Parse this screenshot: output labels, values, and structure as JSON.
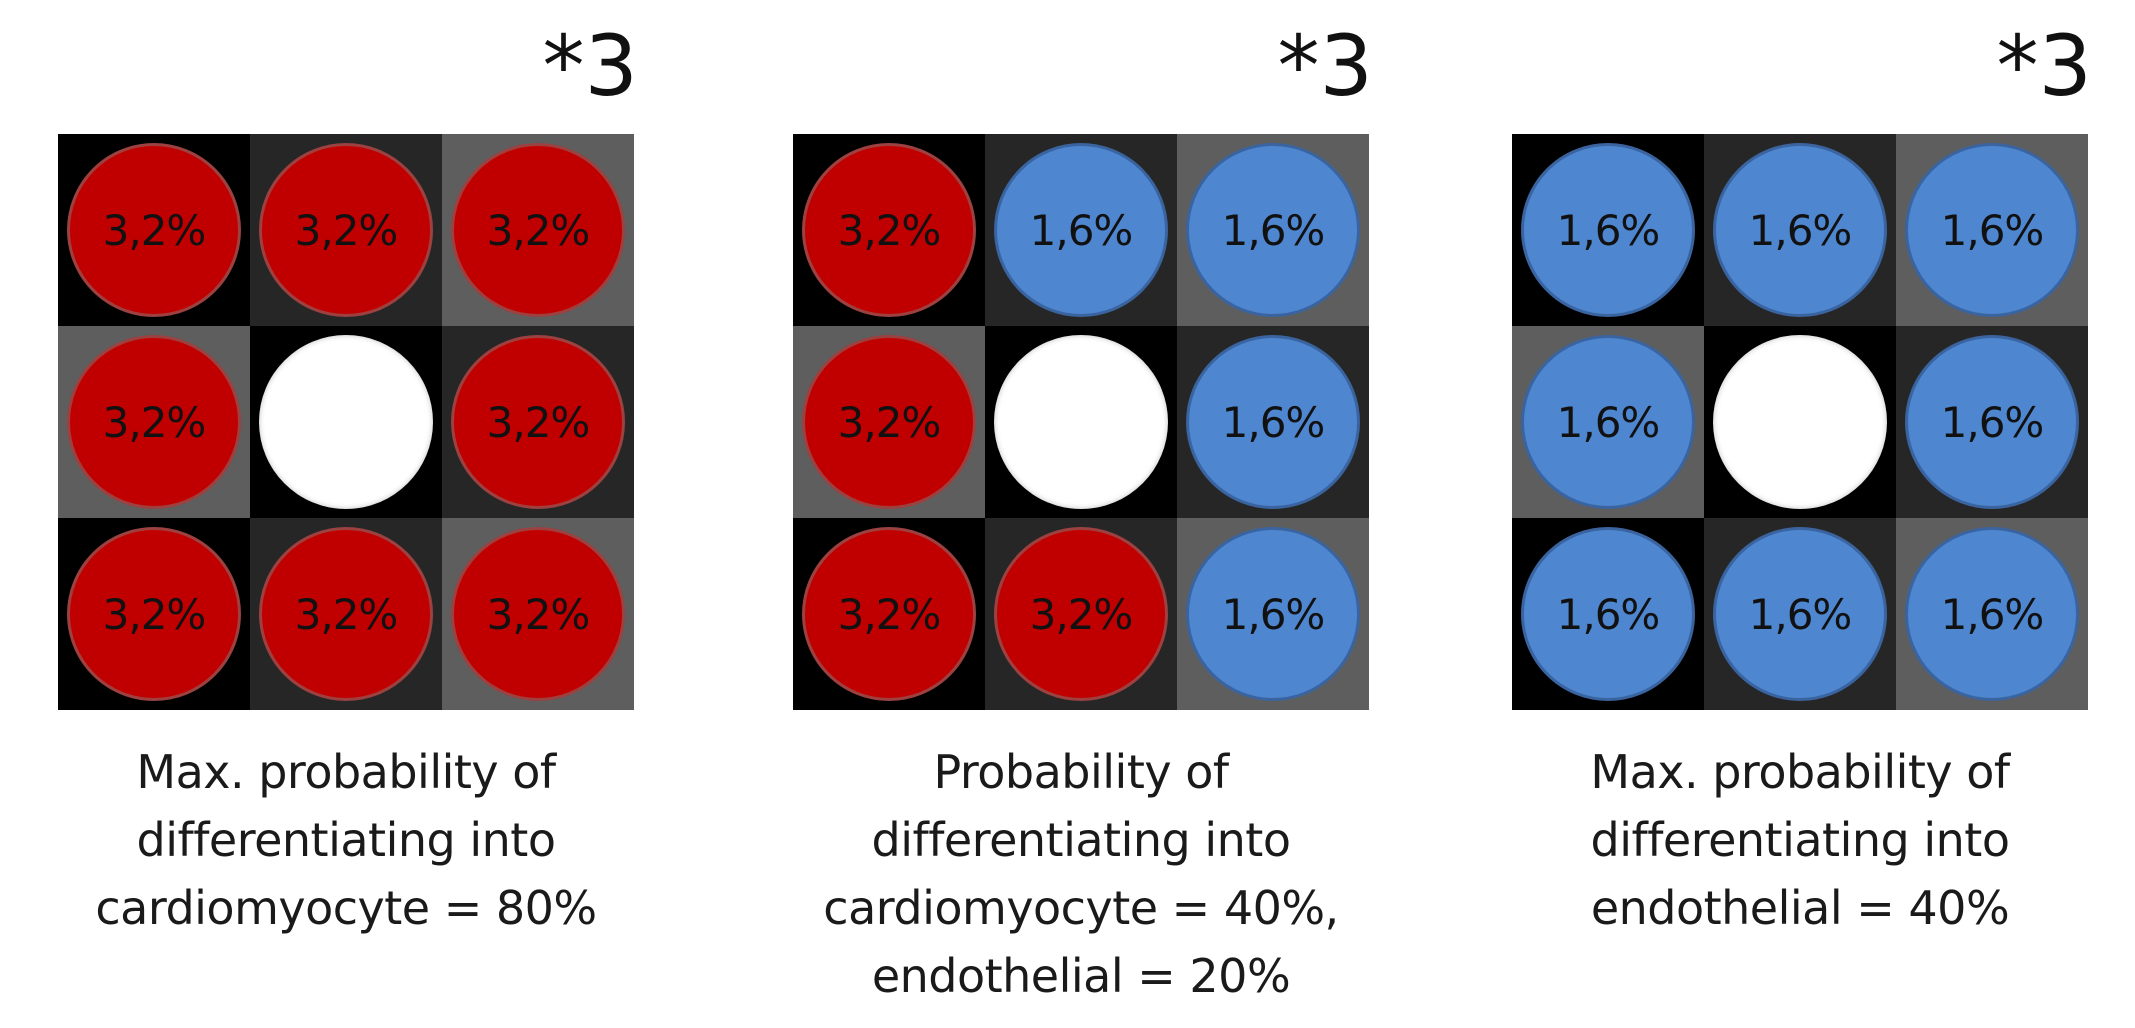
{
  "colors": {
    "cardiomyocyte": "#c00000",
    "endothelial": "#4f86d0",
    "empty": "#ffffff"
  },
  "panels": [
    {
      "multiplier": "*3",
      "cells": [
        {
          "type": "red",
          "label": "3,2%"
        },
        {
          "type": "red",
          "label": "3,2%"
        },
        {
          "type": "red",
          "label": "3,2%"
        },
        {
          "type": "red",
          "label": "3,2%"
        },
        {
          "type": "white",
          "label": ""
        },
        {
          "type": "red",
          "label": "3,2%"
        },
        {
          "type": "red",
          "label": "3,2%"
        },
        {
          "type": "red",
          "label": "3,2%"
        },
        {
          "type": "red",
          "label": "3,2%"
        }
      ],
      "caption": [
        "Max. probability of",
        "differentiating into",
        "cardiomyocyte = 80%"
      ]
    },
    {
      "multiplier": "*3",
      "cells": [
        {
          "type": "red",
          "label": "3,2%"
        },
        {
          "type": "blue",
          "label": "1,6%"
        },
        {
          "type": "blue",
          "label": "1,6%"
        },
        {
          "type": "red",
          "label": "3,2%"
        },
        {
          "type": "white",
          "label": ""
        },
        {
          "type": "blue",
          "label": "1,6%"
        },
        {
          "type": "red",
          "label": "3,2%"
        },
        {
          "type": "red",
          "label": "3,2%"
        },
        {
          "type": "blue",
          "label": "1,6%"
        }
      ],
      "caption": [
        "Probability of",
        "differentiating into",
        "cardiomyocyte = 40%,",
        "endothelial = 20%"
      ]
    },
    {
      "multiplier": "*3",
      "cells": [
        {
          "type": "blue",
          "label": "1,6%"
        },
        {
          "type": "blue",
          "label": "1,6%"
        },
        {
          "type": "blue",
          "label": "1,6%"
        },
        {
          "type": "blue",
          "label": "1,6%"
        },
        {
          "type": "white",
          "label": ""
        },
        {
          "type": "blue",
          "label": "1,6%"
        },
        {
          "type": "blue",
          "label": "1,6%"
        },
        {
          "type": "blue",
          "label": "1,6%"
        },
        {
          "type": "blue",
          "label": "1,6%"
        }
      ],
      "caption": [
        "Max. probability of",
        "differentiating into",
        "endothelial = 40%"
      ]
    }
  ]
}
